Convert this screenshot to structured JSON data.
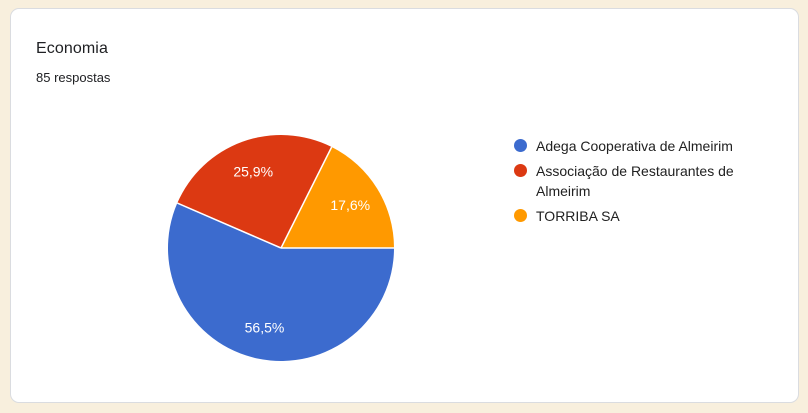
{
  "card": {
    "title": "Economia",
    "responses": "85 respostas"
  },
  "chart_data": {
    "type": "pie",
    "title": "Economia",
    "subtitle": "85 respostas",
    "total_responses": 85,
    "categories": [
      "Adega Cooperativa de Almeirim",
      "Associação de Restaurantes de Almeirim",
      "TORRIBA SA"
    ],
    "values": [
      56.5,
      25.9,
      17.6
    ],
    "value_labels": [
      "56,5%",
      "25,9%",
      "17,6%"
    ],
    "colors": [
      "#3c6bce",
      "#dc3912",
      "#ff9900"
    ],
    "start_angle_deg": 0,
    "direction": "clockwise",
    "legend_position": "right",
    "slice_label_color": "#ffffff",
    "slice_separator_color": "#ffffff"
  },
  "theme": {
    "page_bg": "#f8efdd",
    "card_bg": "#ffffff",
    "card_border": "#dadce0",
    "title_color": "#202124",
    "legend_text_color": "#212121"
  }
}
